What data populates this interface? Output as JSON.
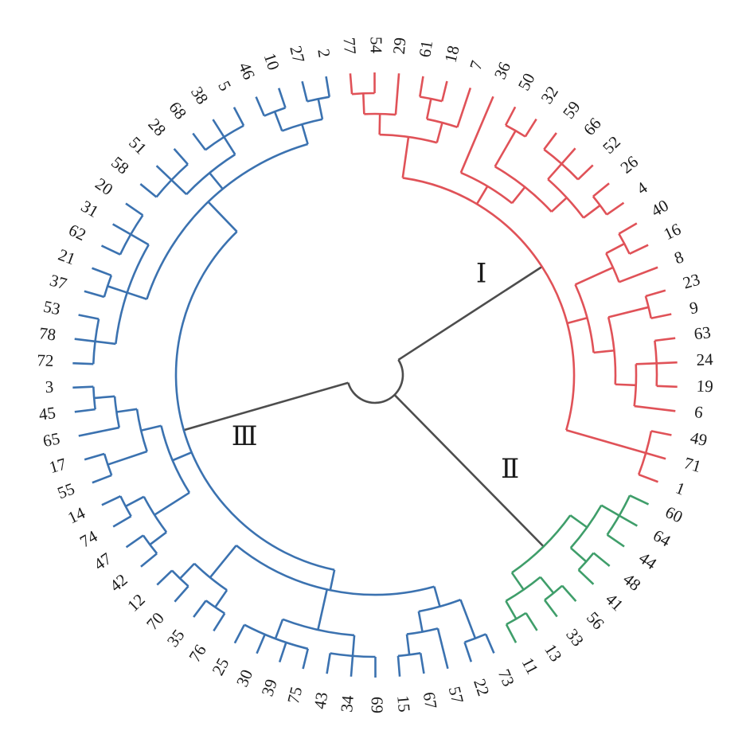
{
  "diagram": {
    "type": "circular-dendrogram",
    "colors": {
      "I": "#e05258",
      "II": "#3f9e6a",
      "III": "#3b72b0",
      "root": "#4d4d4d"
    },
    "clusters": [
      {
        "id": "I",
        "label": "Ⅰ"
      },
      {
        "id": "II",
        "label": "Ⅱ"
      },
      {
        "id": "III",
        "label": "Ⅲ"
      }
    ],
    "tree": {
      "children": [
        {
          "cluster": "I",
          "children": [
            {
              "children": [
                {
                  "children": [
                    {
                      "children": [
                        {
                          "leaf": "77"
                        },
                        {
                          "leaf": "54"
                        }
                      ]
                    },
                    {
                      "leaf": "29"
                    }
                  ]
                },
                {
                  "children": [
                    {
                      "children": [
                        {
                          "leaf": "61"
                        },
                        {
                          "leaf": "18"
                        }
                      ]
                    },
                    {
                      "leaf": "7"
                    }
                  ]
                }
              ]
            },
            {
              "children": [
                {
                  "leaf": "36"
                },
                {
                  "children": [
                    {
                      "children": [
                        {
                          "leaf": "50"
                        },
                        {
                          "leaf": "32"
                        }
                      ]
                    },
                    {
                      "children": [
                        {
                          "children": [
                            {
                              "leaf": "59"
                            },
                            {
                              "leaf": "66"
                            },
                            {
                              "leaf": "52"
                            }
                          ]
                        },
                        {
                          "children": [
                            {
                              "leaf": "26"
                            },
                            {
                              "leaf": "4"
                            }
                          ]
                        }
                      ]
                    }
                  ]
                }
              ]
            },
            {
              "children": [
                {
                  "children": [
                    {
                      "children": [
                        {
                          "leaf": "40"
                        },
                        {
                          "leaf": "16"
                        }
                      ]
                    },
                    {
                      "leaf": "8"
                    }
                  ]
                },
                {
                  "children": [
                    {
                      "children": [
                        {
                          "leaf": "23"
                        },
                        {
                          "leaf": "9"
                        }
                      ]
                    },
                    {
                      "children": [
                        {
                          "children": [
                            {
                              "leaf": "63"
                            },
                            {
                              "leaf": "24"
                            },
                            {
                              "leaf": "19"
                            }
                          ]
                        },
                        {
                          "leaf": "6"
                        }
                      ]
                    }
                  ]
                }
              ]
            },
            {
              "children": [
                {
                  "leaf": "49"
                },
                {
                  "leaf": "71"
                },
                {
                  "leaf": "1"
                }
              ]
            }
          ]
        },
        {
          "cluster": "II",
          "children": [
            {
              "children": [
                {
                  "children": [
                    {
                      "leaf": "60"
                    },
                    {
                      "leaf": "64"
                    },
                    {
                      "leaf": "44"
                    }
                  ]
                },
                {
                  "children": [
                    {
                      "leaf": "48"
                    },
                    {
                      "leaf": "41"
                    }
                  ]
                }
              ]
            },
            {
              "children": [
                {
                  "children": [
                    {
                      "leaf": "56"
                    },
                    {
                      "leaf": "33"
                    }
                  ]
                },
                {
                  "children": [
                    {
                      "leaf": "13"
                    },
                    {
                      "leaf": "11"
                    }
                  ]
                }
              ]
            }
          ]
        },
        {
          "cluster": "III",
          "children": [
            {
              "children": [
                {
                  "children": [
                    {
                      "children": [
                        {
                          "leaf": "73"
                        },
                        {
                          "leaf": "22"
                        }
                      ]
                    },
                    {
                      "children": [
                        {
                          "leaf": "57"
                        },
                        {
                          "children": [
                            {
                              "leaf": "67"
                            },
                            {
                              "leaf": "15"
                            }
                          ]
                        }
                      ]
                    }
                  ]
                },
                {
                  "children": [
                    {
                      "children": [
                        {
                          "leaf": "69"
                        },
                        {
                          "leaf": "34"
                        },
                        {
                          "leaf": "43"
                        }
                      ]
                    },
                    {
                      "children": [
                        {
                          "leaf": "75"
                        },
                        {
                          "leaf": "39"
                        },
                        {
                          "leaf": "30"
                        },
                        {
                          "leaf": "25"
                        }
                      ]
                    }
                  ]
                },
                {
                  "children": [
                    {
                      "children": [
                        {
                          "leaf": "76"
                        },
                        {
                          "leaf": "35"
                        }
                      ]
                    },
                    {
                      "children": [
                        {
                          "leaf": "70"
                        },
                        {
                          "leaf": "12"
                        }
                      ]
                    }
                  ]
                }
              ]
            },
            {
              "children": [
                {
                  "children": [
                    {
                      "children": [
                        {
                          "leaf": "42"
                        },
                        {
                          "leaf": "47"
                        }
                      ]
                    },
                    {
                      "children": [
                        {
                          "leaf": "74"
                        },
                        {
                          "leaf": "14"
                        }
                      ]
                    }
                  ]
                },
                {
                  "children": [
                    {
                      "children": [
                        {
                          "leaf": "55"
                        },
                        {
                          "leaf": "17"
                        }
                      ]
                    },
                    {
                      "children": [
                        {
                          "leaf": "65"
                        },
                        {
                          "children": [
                            {
                              "leaf": "45"
                            },
                            {
                              "leaf": "3"
                            }
                          ]
                        }
                      ]
                    }
                  ]
                }
              ]
            },
            {
              "children": [
                {
                  "children": [
                    {
                      "children": [
                        {
                          "leaf": "72"
                        },
                        {
                          "leaf": "78"
                        },
                        {
                          "leaf": "53"
                        }
                      ]
                    },
                    {
                      "children": [
                        {
                          "leaf": "37"
                        },
                        {
                          "leaf": "21"
                        }
                      ]
                    },
                    {
                      "children": [
                        {
                          "leaf": "62"
                        },
                        {
                          "leaf": "31"
                        },
                        {
                          "leaf": "20"
                        }
                      ]
                    }
                  ]
                },
                {
                  "children": [
                    {
                      "children": [
                        {
                          "leaf": "58"
                        },
                        {
                          "leaf": "51"
                        },
                        {
                          "leaf": "28"
                        }
                      ]
                    },
                    {
                      "children": [
                        {
                          "leaf": "68"
                        },
                        {
                          "leaf": "38"
                        },
                        {
                          "leaf": "5"
                        }
                      ]
                    }
                  ]
                },
                {
                  "children": [
                    {
                      "children": [
                        {
                          "leaf": "46"
                        },
                        {
                          "leaf": "10"
                        }
                      ]
                    },
                    {
                      "children": [
                        {
                          "leaf": "27"
                        },
                        {
                          "leaf": "2"
                        }
                      ]
                    }
                  ]
                }
              ]
            }
          ]
        }
      ]
    }
  }
}
